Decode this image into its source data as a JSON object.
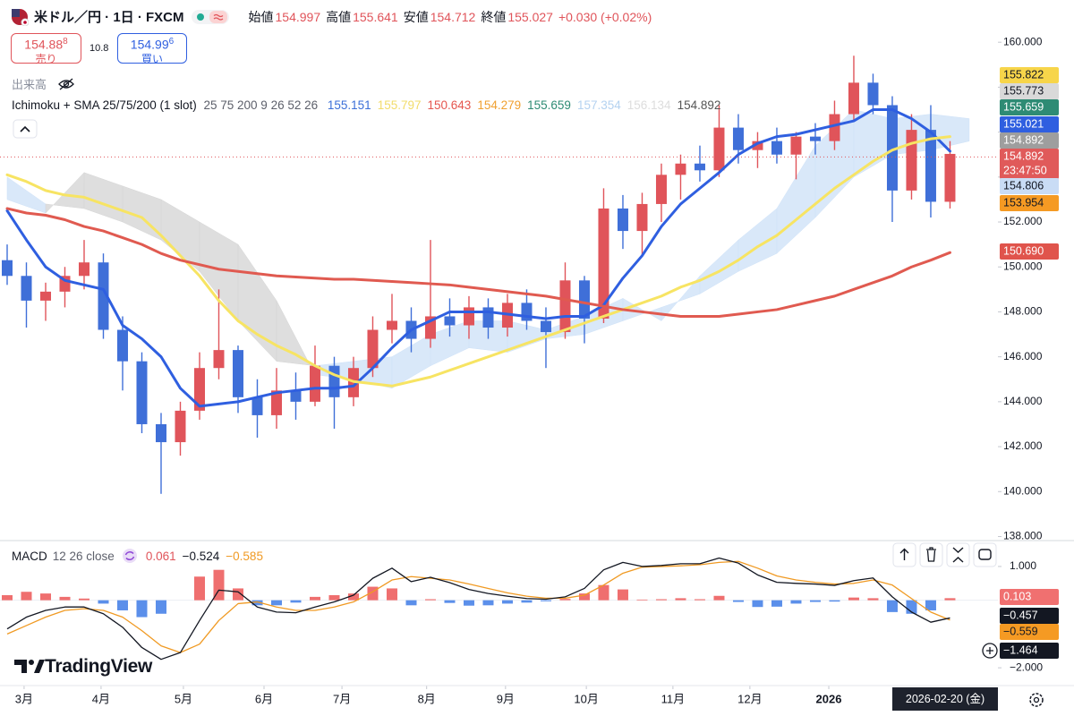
{
  "header": {
    "symbol": "米ドル／円 · 1日 · FXCM",
    "ohlc": [
      {
        "label": "始値",
        "value": "154.997"
      },
      {
        "label": "高値",
        "value": "155.641"
      },
      {
        "label": "安値",
        "value": "154.712"
      },
      {
        "label": "終値",
        "value": "155.027"
      }
    ],
    "change": "+0.030 (+0.02%)"
  },
  "trade": {
    "sell": {
      "price": "154.88",
      "sup": "8",
      "label": "売り"
    },
    "spread": "10.8",
    "buy": {
      "price": "154.99",
      "sup": "6",
      "label": "買い"
    }
  },
  "volume_label": "出来高",
  "indicator": {
    "name": "Ichimoku + SMA 25/75/200 (1 slot)",
    "params": "25 75 200 9 26 52 26",
    "values": [
      {
        "text": "155.151",
        "color": "#3b6fd8"
      },
      {
        "text": "155.797",
        "color": "#f2dc6a"
      },
      {
        "text": "150.643",
        "color": "#e5554e"
      },
      {
        "text": "154.279",
        "color": "#f0a030"
      },
      {
        "text": "155.659",
        "color": "#2e8b74"
      },
      {
        "text": "157.354",
        "color": "#b4d2f0"
      },
      {
        "text": "156.134",
        "color": "#dddddd"
      },
      {
        "text": "154.892",
        "color": "#555555"
      }
    ]
  },
  "chart_data": [
    {
      "type": "candlestick",
      "open": [
        150.3,
        149.6,
        148.5,
        148.9,
        149.6,
        150.2,
        147.2,
        145.8,
        143,
        142.2,
        143.6,
        145.5,
        146.3,
        144.2,
        143.4,
        144.5,
        144,
        145.6,
        144.2,
        145.5,
        147.2,
        147.6,
        146.8,
        147.8,
        147.4,
        148.2,
        147.3,
        148.4,
        147.6,
        147.1,
        149.4,
        147.7,
        152.6,
        151.6,
        152.8,
        154.1,
        154.6,
        154.3,
        156.2,
        155.2,
        155.6,
        155,
        155.8,
        155.6,
        156.8,
        158.2,
        157.2,
        153.4,
        156.1,
        152.9
      ],
      "high": [
        151,
        150.2,
        149.3,
        150,
        151.2,
        150.6,
        147.8,
        146.2,
        143.5,
        144,
        146.2,
        149,
        146.5,
        145,
        145.5,
        145.3,
        146.5,
        146,
        146,
        147.8,
        148.8,
        148.2,
        151.2,
        148.6,
        148.7,
        148.6,
        148.8,
        149,
        148.2,
        150.2,
        149.6,
        153.5,
        153.2,
        153.3,
        154.6,
        155,
        155.4,
        157.2,
        156.8,
        156,
        156.2,
        156,
        156.4,
        157.4,
        159.4,
        158.6,
        157.6,
        156.8,
        157.2,
        155.6
      ],
      "low": [
        149.2,
        147.3,
        147.6,
        148.2,
        149,
        146.8,
        144.5,
        142.6,
        139.9,
        141.6,
        143.2,
        145,
        143.5,
        142.4,
        142.8,
        143.2,
        143.8,
        142.8,
        143.8,
        145.1,
        146.6,
        146.2,
        146.4,
        146.9,
        146.8,
        146.8,
        146.9,
        147.2,
        145.5,
        146.8,
        146.6,
        147.5,
        150.8,
        150.5,
        152,
        153,
        153.8,
        154,
        154.6,
        154.4,
        154.6,
        153.9,
        155,
        155.2,
        156.5,
        156.8,
        152,
        153,
        152.2,
        152.6
      ],
      "close": [
        149.6,
        148.5,
        148.9,
        149.6,
        150.2,
        147.2,
        145.8,
        143,
        142.2,
        143.6,
        145.5,
        146.3,
        144.2,
        143.4,
        144.5,
        144,
        145.6,
        144.2,
        145.5,
        147.2,
        147.6,
        146.8,
        147.8,
        147.4,
        148.2,
        147.3,
        148.4,
        147.6,
        147.1,
        149.4,
        147.7,
        152.6,
        151.6,
        152.8,
        154.1,
        154.6,
        154.3,
        156.2,
        155.2,
        155.6,
        155,
        155.8,
        155.6,
        156.8,
        158.2,
        157.2,
        153.4,
        156.1,
        152.9,
        155.03
      ],
      "up_color": "#e0545a",
      "down_color": "#3f6fd8",
      "lines": [
        {
          "color": "#2f5fe0",
          "values": [
            152.5,
            151.2,
            150,
            149.4,
            149.2,
            149,
            147.4,
            146.8,
            146,
            144.6,
            143.8,
            143.9,
            144,
            144.2,
            144.4,
            144.5,
            144.6,
            144.6,
            144.7,
            145.5,
            146.4,
            147.2,
            147.6,
            148,
            148,
            148,
            147.9,
            147.8,
            147.7,
            147.8,
            147.8,
            148.3,
            149.5,
            150.5,
            151.8,
            152.8,
            153.5,
            154.2,
            155,
            155.5,
            155.8,
            155.9,
            156.1,
            156.3,
            156.5,
            157,
            157,
            156.6,
            156,
            155.15
          ]
        },
        {
          "color": "#f7e463",
          "values": [
            154.1,
            153.8,
            153.4,
            153.2,
            153.1,
            152.8,
            152.5,
            152.2,
            151.4,
            150.5,
            149.6,
            148.5,
            147.6,
            147,
            146.5,
            146.1,
            145.6,
            145.2,
            144.9,
            144.8,
            144.7,
            144.9,
            145.1,
            145.4,
            145.7,
            146,
            146.3,
            146.6,
            146.9,
            147.2,
            147.5,
            147.8,
            148.1,
            148.4,
            148.7,
            149.1,
            149.4,
            149.8,
            150.3,
            150.9,
            151.4,
            152.1,
            152.8,
            153.5,
            154.1,
            154.7,
            155.2,
            155.5,
            155.7,
            155.8
          ]
        },
        {
          "color": "#e05a50",
          "values": [
            152.6,
            152.4,
            152.3,
            152.1,
            151.8,
            151.6,
            151.3,
            151,
            150.6,
            150.3,
            150.1,
            149.9,
            149.8,
            149.7,
            149.6,
            149.55,
            149.5,
            149.45,
            149.45,
            149.4,
            149.35,
            149.3,
            149.25,
            149.2,
            149.1,
            149,
            148.9,
            148.8,
            148.7,
            148.55,
            148.4,
            148.25,
            148.1,
            148,
            147.9,
            147.8,
            147.8,
            147.8,
            147.9,
            148,
            148.1,
            148.3,
            148.5,
            148.7,
            149,
            149.3,
            149.6,
            150,
            150.3,
            150.64
          ]
        }
      ],
      "cloud": {
        "x": [
          0,
          2,
          4,
          6,
          8,
          10,
          12,
          14,
          16,
          18,
          20,
          22,
          24,
          26,
          28,
          30,
          32,
          34,
          36,
          38,
          40,
          42,
          44,
          46,
          48,
          50
        ],
        "span_a": [
          154,
          152.8,
          152.6,
          152,
          151.2,
          149.8,
          147.6,
          145.8,
          145.6,
          145.8,
          146,
          147,
          147.6,
          147.6,
          147.2,
          147.8,
          148.6,
          147.6,
          149.6,
          151.2,
          152.6,
          155.4,
          157,
          156.6,
          156.8,
          156.6
        ],
        "span_b": [
          153,
          152.4,
          154.2,
          153.6,
          153,
          152,
          151,
          148.5,
          145.2,
          145,
          144.6,
          145.6,
          146.4,
          146.2,
          146.8,
          147,
          147.6,
          148.2,
          148.8,
          149.8,
          150.6,
          152.2,
          154,
          155,
          155.2,
          155.6
        ],
        "up_color": "#cfe2f8",
        "down_color": "#d6d6d6"
      },
      "last_price": 154.892,
      "xlim": [
        -0.372,
        51.49
      ],
      "xticks": [
        {
          "value": 0.88,
          "label": "3月"
        },
        {
          "value": 4.88,
          "label": "4月"
        },
        {
          "value": 9.16,
          "label": "5月"
        },
        {
          "value": 13.35,
          "label": "6月"
        },
        {
          "value": 17.4,
          "label": "7月"
        },
        {
          "value": 21.8,
          "label": "8月"
        },
        {
          "value": 25.9,
          "label": "9月"
        },
        {
          "value": 30.1,
          "label": "10月"
        },
        {
          "value": 34.6,
          "label": "11月"
        },
        {
          "value": 38.6,
          "label": "12月"
        },
        {
          "value": 42.7,
          "label": "2026"
        }
      ],
      "ylim": [
        137.86,
        161.88
      ],
      "yticks": [
        {
          "value": 138,
          "label": "138.000"
        },
        {
          "value": 140,
          "label": "140.000"
        },
        {
          "value": 142,
          "label": "142.000"
        },
        {
          "value": 144,
          "label": "144.000"
        },
        {
          "value": 146,
          "label": "146.000"
        },
        {
          "value": 148,
          "label": "148.000"
        },
        {
          "value": 150,
          "label": "150.000"
        },
        {
          "value": 152,
          "label": "152.000"
        },
        {
          "value": 154,
          "label": "154.000"
        },
        {
          "value": 156,
          "label": "156.000"
        },
        {
          "value": 158,
          "label": "158.000"
        },
        {
          "value": 160,
          "label": "160.000"
        }
      ],
      "grid": false,
      "price_labels": [
        {
          "text": "155.822",
          "bg": "#f7d54a",
          "fg": "#131722"
        },
        {
          "text": "155.773",
          "bg": "#d9d9d9",
          "fg": "#131722"
        },
        {
          "text": "155.659",
          "bg": "#2e8b74",
          "fg": "#ffffff"
        },
        {
          "text": "155.021",
          "bg": "#2f5fe0",
          "fg": "#ffffff"
        },
        {
          "text": "154.892",
          "bg": "#9e9e9e",
          "fg": "#ffffff"
        },
        {
          "text": "154.892",
          "sub": "23:47:50",
          "bg": "#e05a5a",
          "fg": "#ffffff"
        },
        {
          "text": "154.806",
          "bg": "#c9dcf5",
          "fg": "#131722"
        },
        {
          "text": "153.954",
          "bg": "#f59a23",
          "fg": "#131722"
        },
        {
          "text": "150.690",
          "bg": "#e0544c",
          "fg": "#ffffff"
        }
      ]
    },
    {
      "type": "macd",
      "title": "MACD",
      "params": "12 26 close",
      "header_values": [
        {
          "text": "0.061",
          "color": "#e0545a"
        },
        {
          "text": "−0.524",
          "color": "#131722"
        },
        {
          "text": "−0.585",
          "color": "#f09a23"
        }
      ],
      "histogram": [
        0.15,
        0.25,
        0.2,
        0.1,
        0.05,
        -0.1,
        -0.3,
        -0.5,
        -0.4,
        0,
        0.7,
        0.9,
        0.35,
        -0.15,
        -0.15,
        -0.07,
        0.1,
        0.15,
        0.2,
        0.4,
        0.35,
        -0.15,
        0.03,
        -0.08,
        -0.16,
        -0.15,
        -0.1,
        -0.07,
        -0.03,
        0.04,
        0.2,
        0.45,
        0.32,
        0.02,
        0.03,
        0.06,
        0.03,
        0.13,
        -0.05,
        -0.2,
        -0.19,
        -0.1,
        -0.05,
        -0.04,
        0.08,
        0.06,
        -0.35,
        -0.4,
        -0.3,
        0.061
      ],
      "histogram_colors": [
        "#ef6f6f",
        "#5b8fea"
      ],
      "macd": {
        "color": "#131722",
        "values": [
          -0.85,
          -0.5,
          -0.3,
          -0.2,
          -0.2,
          -0.4,
          -0.8,
          -1.4,
          -1.75,
          -1.55,
          -0.6,
          0.3,
          0.25,
          -0.2,
          -0.35,
          -0.37,
          -0.2,
          -0.05,
          0.15,
          0.65,
          0.95,
          0.55,
          0.68,
          0.52,
          0.32,
          0.2,
          0.12,
          0.05,
          0.03,
          0.1,
          0.35,
          0.9,
          1.12,
          1,
          1.03,
          1.08,
          1.08,
          1.25,
          1.1,
          0.75,
          0.53,
          0.5,
          0.48,
          0.44,
          0.58,
          0.66,
          0.1,
          -0.35,
          -0.65,
          -0.524
        ]
      },
      "signal": {
        "color": "#f09a23",
        "values": [
          -1,
          -0.75,
          -0.5,
          -0.3,
          -0.25,
          -0.3,
          -0.5,
          -0.9,
          -1.35,
          -1.55,
          -1.3,
          -0.6,
          -0.1,
          -0.05,
          -0.2,
          -0.3,
          -0.3,
          -0.2,
          -0.05,
          0.25,
          0.6,
          0.7,
          0.65,
          0.6,
          0.48,
          0.35,
          0.22,
          0.12,
          0.06,
          0.06,
          0.15,
          0.45,
          0.8,
          0.98,
          1,
          1.02,
          1.05,
          1.12,
          1.15,
          0.95,
          0.72,
          0.6,
          0.53,
          0.48,
          0.5,
          0.6,
          0.45,
          0.05,
          -0.35,
          -0.585
        ]
      },
      "ylim": [
        -2.5,
        1.74
      ],
      "yticks": [
        {
          "value": 1,
          "label": "1.000"
        },
        {
          "value": -2,
          "label": "−2.000"
        }
      ],
      "price_labels": [
        {
          "text": "0.103",
          "bg": "#f07070",
          "fg": "#ffffff"
        },
        {
          "text": "−0.457",
          "bg": "#131722",
          "fg": "#ffffff"
        },
        {
          "text": "−0.559",
          "bg": "#f59a23",
          "fg": "#131722"
        },
        {
          "text": "−1.464",
          "bg": "#131722",
          "fg": "#ffffff"
        }
      ]
    }
  ],
  "cursor_date": "2026-02-20 (金)",
  "logo": "TradingView"
}
